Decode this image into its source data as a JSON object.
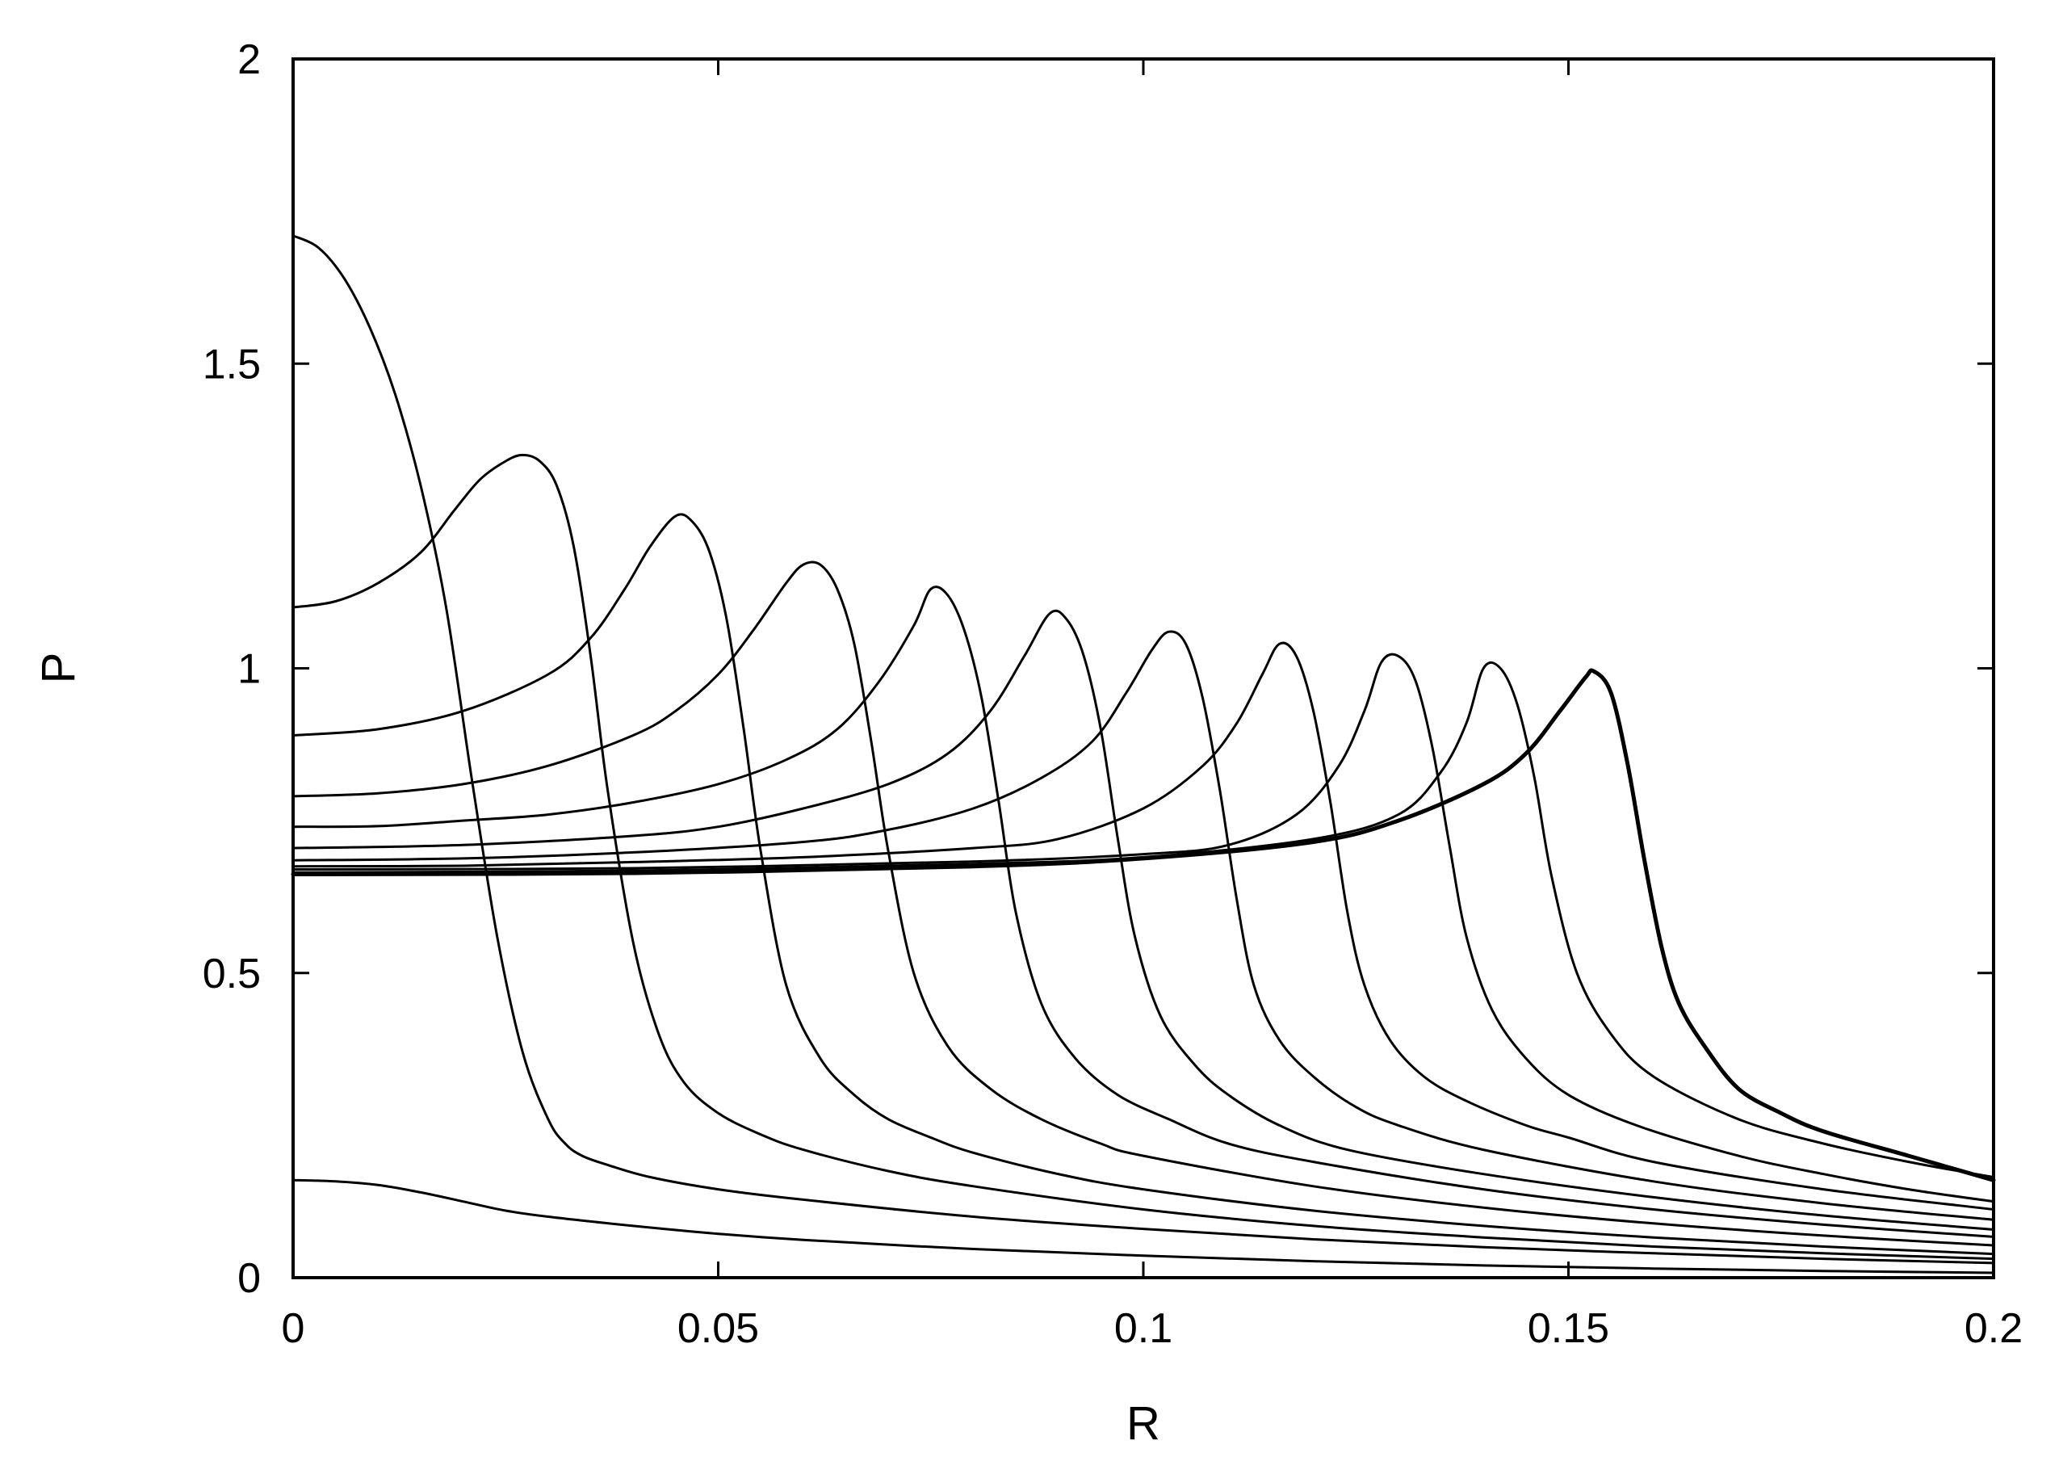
{
  "chart_data": {
    "type": "line",
    "title": "",
    "xlabel": "R",
    "ylabel": "P",
    "xlim": [
      0,
      0.2
    ],
    "ylim": [
      0,
      2
    ],
    "xticks": [
      {
        "value": 0,
        "label": "0"
      },
      {
        "value": 0.05,
        "label": "0.05"
      },
      {
        "value": 0.1,
        "label": "0.1"
      },
      {
        "value": 0.15,
        "label": "0.15"
      },
      {
        "value": 0.2,
        "label": "0.2"
      }
    ],
    "yticks": [
      {
        "value": 0,
        "label": "0"
      },
      {
        "value": 0.5,
        "label": "0.5"
      },
      {
        "value": 1,
        "label": "1"
      },
      {
        "value": 1.5,
        "label": "1.5"
      },
      {
        "value": 2,
        "label": "2"
      }
    ],
    "grid": false,
    "legend": "none",
    "series": [
      {
        "x": [
          0,
          0.005,
          0.01,
          0.015,
          0.02,
          0.025,
          0.03,
          0.04,
          0.05,
          0.06,
          0.08,
          0.1,
          0.12,
          0.14,
          0.16,
          0.18,
          0.2
        ],
        "y": [
          0.16,
          0.158,
          0.152,
          0.14,
          0.125,
          0.11,
          0.1,
          0.085,
          0.072,
          0.062,
          0.047,
          0.036,
          0.027,
          0.02,
          0.015,
          0.011,
          0.008
        ]
      },
      {
        "x": [
          0,
          0.003,
          0.006,
          0.009,
          0.012,
          0.015,
          0.018,
          0.021,
          0.024,
          0.027,
          0.03,
          0.032,
          0.034,
          0.037,
          0.042,
          0.05,
          0.06,
          0.08,
          0.1,
          0.12,
          0.14,
          0.16,
          0.18,
          0.2
        ],
        "y": [
          1.71,
          1.69,
          1.64,
          1.56,
          1.45,
          1.3,
          1.1,
          0.82,
          0.56,
          0.37,
          0.26,
          0.22,
          0.2,
          0.185,
          0.165,
          0.145,
          0.128,
          0.1,
          0.08,
          0.063,
          0.05,
          0.04,
          0.031,
          0.024
        ]
      },
      {
        "x": [
          0,
          0.005,
          0.01,
          0.015,
          0.019,
          0.022,
          0.025,
          0.027,
          0.029,
          0.031,
          0.033,
          0.035,
          0.037,
          0.04,
          0.043,
          0.046,
          0.05,
          0.055,
          0.06,
          0.07,
          0.08,
          0.1,
          0.12,
          0.14,
          0.16,
          0.18,
          0.2
        ],
        "y": [
          1.1,
          1.11,
          1.14,
          1.19,
          1.26,
          1.31,
          1.34,
          1.35,
          1.34,
          1.3,
          1.2,
          1.02,
          0.8,
          0.55,
          0.4,
          0.32,
          0.27,
          0.235,
          0.21,
          0.175,
          0.15,
          0.112,
          0.085,
          0.066,
          0.051,
          0.04,
          0.031
        ]
      },
      {
        "x": [
          0,
          0.01,
          0.02,
          0.03,
          0.035,
          0.039,
          0.042,
          0.045,
          0.047,
          0.049,
          0.051,
          0.053,
          0.055,
          0.058,
          0.062,
          0.066,
          0.07,
          0.075,
          0.08,
          0.09,
          0.1,
          0.12,
          0.14,
          0.16,
          0.18,
          0.2
        ],
        "y": [
          0.89,
          0.9,
          0.93,
          0.99,
          1.05,
          1.13,
          1.2,
          1.25,
          1.24,
          1.19,
          1.08,
          0.9,
          0.7,
          0.48,
          0.36,
          0.3,
          0.26,
          0.23,
          0.205,
          0.17,
          0.145,
          0.11,
          0.085,
          0.066,
          0.051,
          0.039
        ]
      },
      {
        "x": [
          0,
          0.01,
          0.02,
          0.03,
          0.04,
          0.045,
          0.05,
          0.054,
          0.058,
          0.06,
          0.062,
          0.064,
          0.066,
          0.068,
          0.07,
          0.073,
          0.077,
          0.082,
          0.088,
          0.095,
          0.1,
          0.12,
          0.14,
          0.16,
          0.18,
          0.2
        ],
        "y": [
          0.79,
          0.795,
          0.81,
          0.84,
          0.89,
          0.93,
          0.99,
          1.06,
          1.14,
          1.17,
          1.17,
          1.13,
          1.04,
          0.88,
          0.7,
          0.5,
          0.38,
          0.31,
          0.26,
          0.22,
          0.2,
          0.15,
          0.115,
          0.089,
          0.069,
          0.053
        ]
      },
      {
        "x": [
          0,
          0.01,
          0.02,
          0.03,
          0.04,
          0.05,
          0.058,
          0.064,
          0.069,
          0.073,
          0.075,
          0.077,
          0.079,
          0.081,
          0.083,
          0.085,
          0.088,
          0.092,
          0.097,
          0.103,
          0.11,
          0.12,
          0.14,
          0.16,
          0.18,
          0.2
        ],
        "y": [
          0.74,
          0.741,
          0.75,
          0.76,
          0.78,
          0.81,
          0.85,
          0.9,
          0.98,
          1.07,
          1.13,
          1.12,
          1.06,
          0.95,
          0.78,
          0.6,
          0.45,
          0.36,
          0.3,
          0.26,
          0.22,
          0.19,
          0.145,
          0.112,
          0.087,
          0.067
        ]
      },
      {
        "x": [
          0,
          0.02,
          0.04,
          0.05,
          0.06,
          0.07,
          0.077,
          0.082,
          0.086,
          0.089,
          0.091,
          0.093,
          0.095,
          0.097,
          0.099,
          0.102,
          0.106,
          0.11,
          0.116,
          0.124,
          0.14,
          0.16,
          0.18,
          0.2
        ],
        "y": [
          0.705,
          0.71,
          0.725,
          0.74,
          0.77,
          0.81,
          0.86,
          0.93,
          1.02,
          1.09,
          1.08,
          1.02,
          0.9,
          0.72,
          0.56,
          0.43,
          0.35,
          0.3,
          0.25,
          0.21,
          0.17,
          0.132,
          0.102,
          0.079
        ]
      },
      {
        "x": [
          0,
          0.02,
          0.04,
          0.06,
          0.07,
          0.08,
          0.088,
          0.094,
          0.098,
          0.101,
          0.103,
          0.105,
          0.107,
          0.109,
          0.111,
          0.113,
          0.116,
          0.12,
          0.125,
          0.13,
          0.14,
          0.16,
          0.18,
          0.2
        ],
        "y": [
          0.685,
          0.688,
          0.698,
          0.715,
          0.735,
          0.77,
          0.82,
          0.88,
          0.96,
          1.03,
          1.06,
          1.04,
          0.95,
          0.8,
          0.62,
          0.48,
          0.39,
          0.33,
          0.28,
          0.25,
          0.21,
          0.158,
          0.122,
          0.095
        ]
      },
      {
        "x": [
          0,
          0.02,
          0.04,
          0.06,
          0.08,
          0.09,
          0.1,
          0.107,
          0.111,
          0.114,
          0.116,
          0.118,
          0.12,
          0.122,
          0.124,
          0.126,
          0.129,
          0.133,
          0.138,
          0.145,
          0.15,
          0.16,
          0.18,
          0.2
        ],
        "y": [
          0.675,
          0.676,
          0.682,
          0.69,
          0.705,
          0.72,
          0.77,
          0.84,
          0.91,
          0.99,
          1.04,
          1.02,
          0.93,
          0.78,
          0.6,
          0.48,
          0.39,
          0.33,
          0.29,
          0.25,
          0.23,
          0.19,
          0.145,
          0.112
        ]
      },
      {
        "x": [
          0,
          0.04,
          0.08,
          0.1,
          0.11,
          0.118,
          0.123,
          0.126,
          0.128,
          0.13,
          0.132,
          0.134,
          0.136,
          0.138,
          0.141,
          0.145,
          0.15,
          0.158,
          0.17,
          0.18,
          0.19,
          0.2
        ],
        "y": [
          0.67,
          0.672,
          0.683,
          0.695,
          0.71,
          0.76,
          0.84,
          0.93,
          1.01,
          1.02,
          0.98,
          0.87,
          0.71,
          0.56,
          0.44,
          0.36,
          0.3,
          0.25,
          0.2,
          0.17,
          0.145,
          0.125
        ]
      },
      {
        "x": [
          0,
          0.04,
          0.08,
          0.1,
          0.12,
          0.13,
          0.135,
          0.138,
          0.14,
          0.142,
          0.144,
          0.146,
          0.148,
          0.151,
          0.155,
          0.16,
          0.17,
          0.18,
          0.19,
          0.2
        ],
        "y": [
          0.665,
          0.668,
          0.679,
          0.69,
          0.72,
          0.76,
          0.83,
          0.91,
          1.0,
          1.0,
          0.94,
          0.82,
          0.66,
          0.5,
          0.4,
          0.33,
          0.26,
          0.22,
          0.19,
          0.165
        ]
      },
      {
        "x": [
          0,
          0.04,
          0.08,
          0.1,
          0.12,
          0.13,
          0.14,
          0.145,
          0.149,
          0.152,
          0.153,
          0.155,
          0.157,
          0.159,
          0.161,
          0.163,
          0.166,
          0.17,
          0.175,
          0.18,
          0.19,
          0.2
        ],
        "y": [
          0.662,
          0.664,
          0.675,
          0.688,
          0.715,
          0.75,
          0.81,
          0.86,
          0.93,
          0.985,
          0.995,
          0.96,
          0.84,
          0.68,
          0.54,
          0.45,
          0.38,
          0.31,
          0.27,
          0.24,
          0.2,
          0.16
        ]
      }
    ]
  }
}
